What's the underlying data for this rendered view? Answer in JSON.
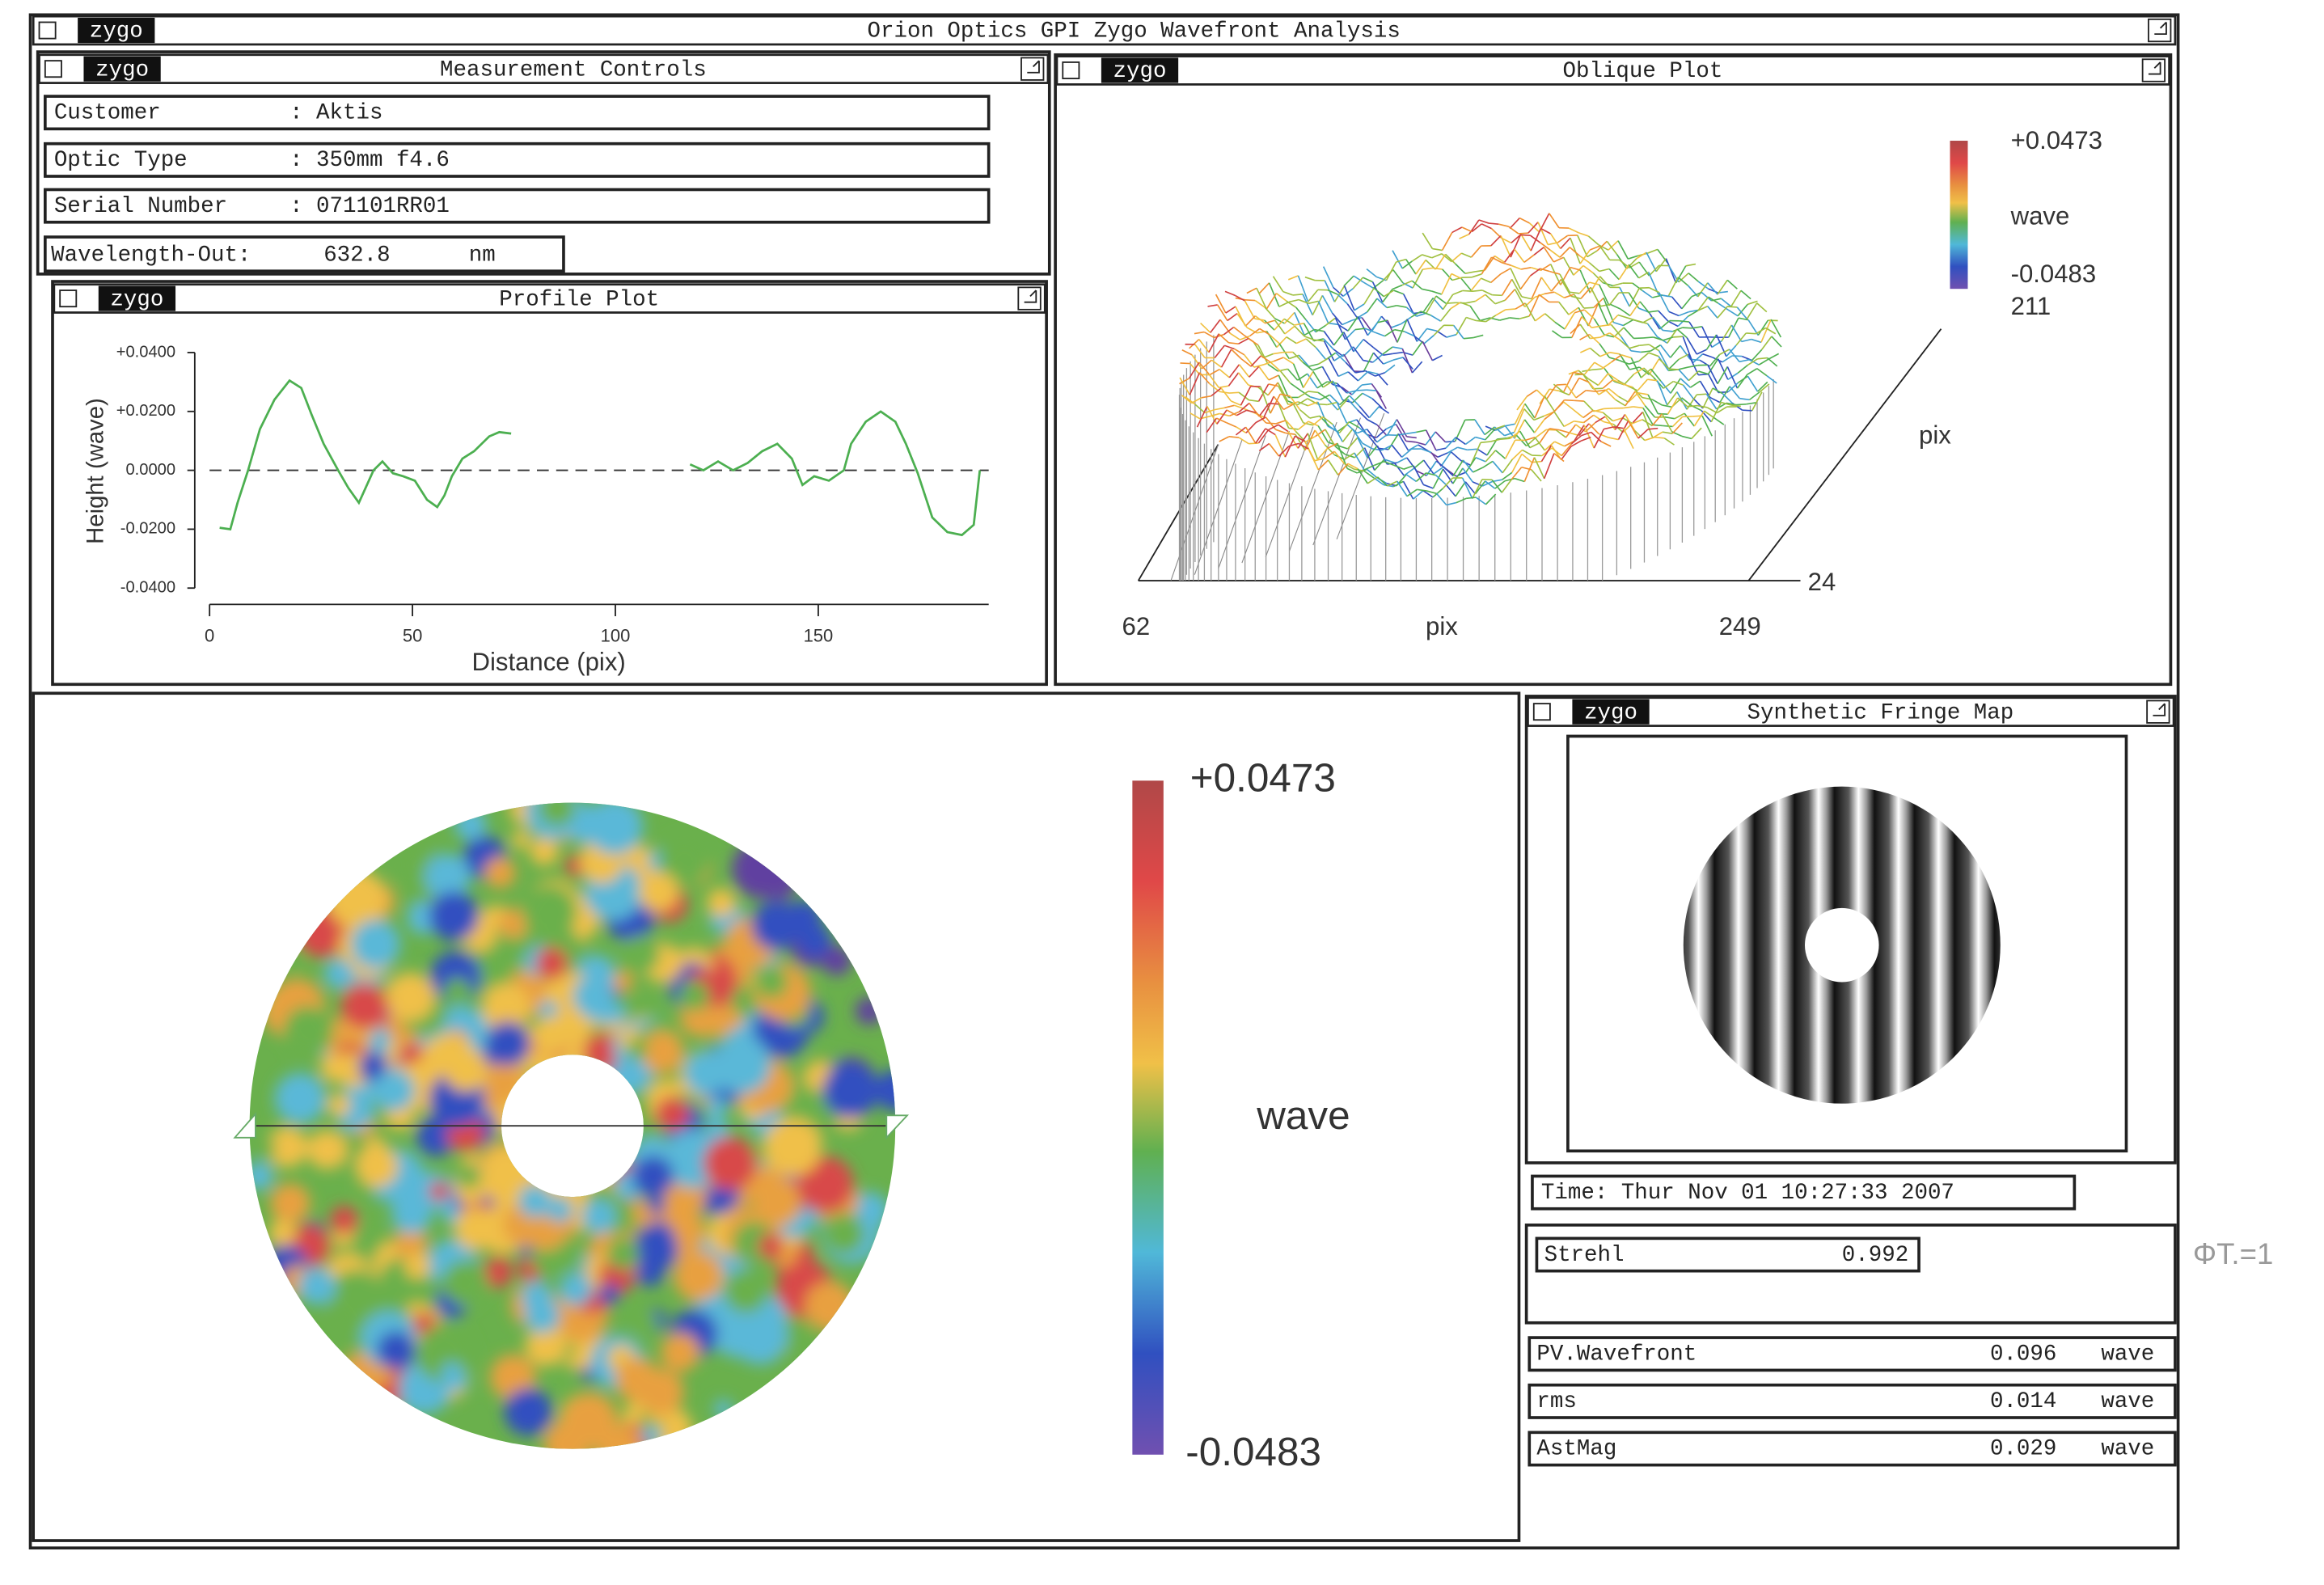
{
  "window": {
    "logo": "zygo",
    "title": "Orion Optics GPI Zygo Wavefront Analysis"
  },
  "measurement_controls": {
    "title": "Measurement Controls",
    "fields": [
      {
        "label": "Customer",
        "value": ": Aktis"
      },
      {
        "label": "Optic Type",
        "value": ": 350mm f4.6"
      },
      {
        "label": "Serial Number",
        "value": ": 071101RR01"
      }
    ],
    "wavelength": {
      "label": "Wavelength-Out:",
      "value": "632.8",
      "unit": "nm"
    }
  },
  "profile_plot": {
    "type": "line",
    "title": "Profile Plot",
    "x_label": "Distance (pix)",
    "y_label": "Height (wave)",
    "color": "#4caf50",
    "x": [
      2.5,
      5.1,
      6.9,
      9.5,
      12.4,
      16.0,
      19.7,
      22.6,
      25.1,
      28.1,
      31.7,
      34.2,
      36.8,
      40.4,
      42.6,
      45.2,
      47.7,
      50.6,
      53.6,
      56.1,
      57.9,
      59.7,
      62.3,
      65.2,
      68.9,
      71.4,
      74.3,
      96,
      118.4,
      121.7,
      125.3,
      129.0,
      132.6,
      136.2,
      139.9,
      143.5,
      146.1,
      149.0,
      152.6,
      156.3,
      158.1,
      161.7,
      165.4,
      169.0,
      171.6,
      174.5,
      178.1,
      181.8,
      185.4,
      188.3,
      189.8
    ],
    "values": [
      -0.0195,
      -0.02,
      -0.011,
      0,
      0.014,
      0.024,
      0.0305,
      0.028,
      0.019,
      0.009,
      0,
      -0.006,
      -0.011,
      0,
      0.003,
      -0.001,
      -0.002,
      -0.0035,
      -0.01,
      -0.0125,
      -0.0085,
      -0.002,
      0.004,
      0.0065,
      0.0115,
      0.013,
      0.0125,
      null,
      0.002,
      0,
      0.003,
      0,
      0.0025,
      0.0065,
      0.009,
      0.004,
      -0.005,
      -0.002,
      -0.0035,
      0,
      0.009,
      0.0165,
      0.02,
      0.0165,
      0.009,
      -0.001,
      -0.016,
      -0.021,
      -0.022,
      -0.0185,
      0
    ],
    "xlim": [
      0,
      192
    ],
    "ylim": [
      -0.04,
      0.04
    ],
    "xticks": [
      0,
      50,
      100,
      150
    ],
    "yticks": [
      {
        "value": 0.04,
        "label": "+0.0400"
      },
      {
        "value": 0.02,
        "label": "+0.0200"
      },
      {
        "value": 0,
        "label": "0.0000"
      },
      {
        "value": -0.02,
        "label": "-0.0200"
      },
      {
        "value": -0.04,
        "label": "-0.0400"
      }
    ]
  },
  "oblique_plot": {
    "title": "Oblique Plot",
    "scale_max": "+0.0473",
    "scale_unit": "wave",
    "scale_min": "-0.0483",
    "y_end": "211",
    "y_label": "pix",
    "y_start": "24",
    "x_start": "62",
    "x_label": "pix",
    "x_end": "249"
  },
  "surface_map": {
    "scale_max": "+0.0473",
    "scale_unit": "wave",
    "scale_min": "-0.0483"
  },
  "fringe_map": {
    "title": "Synthetic Fringe Map"
  },
  "results": {
    "time": "Time: Thur Nov 01 10:27:33 2007",
    "strehl": {
      "label": "Strehl",
      "value": "0.992"
    },
    "rows": [
      {
        "label": "PV.Wavefront",
        "value": "0.096",
        "unit": "wave"
      },
      {
        "label": "rms",
        "value": "0.014",
        "unit": "wave"
      },
      {
        "label": "AstMag",
        "value": "0.029",
        "unit": "wave"
      }
    ]
  },
  "annotation": "ΦT.=1"
}
